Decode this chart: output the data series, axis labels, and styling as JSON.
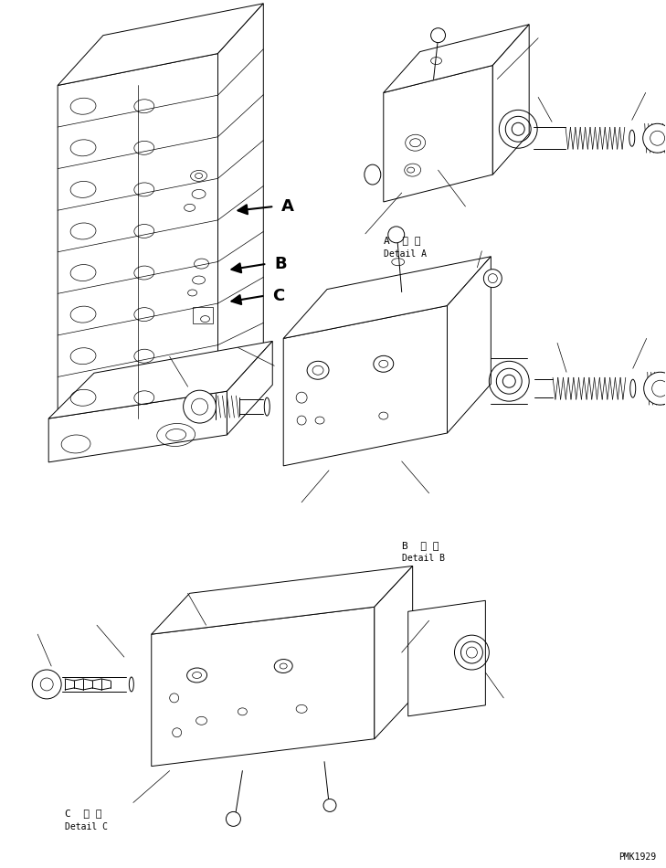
{
  "bg_color": "#ffffff",
  "line_color": "#000000",
  "fig_width": 7.29,
  "fig_height": 9.5,
  "dpi": 100,
  "watermark": "PMK1929",
  "lw_main": 0.7,
  "lw_thin": 0.5,
  "labels": {
    "A_detail_jp": "A  詳 細",
    "A_detail_en": "Detail A",
    "B_detail_jp": "B  詳 細",
    "B_detail_en": "Detail B",
    "C_detail_jp": "C  詳 細",
    "C_detail_en": "Detail C"
  }
}
